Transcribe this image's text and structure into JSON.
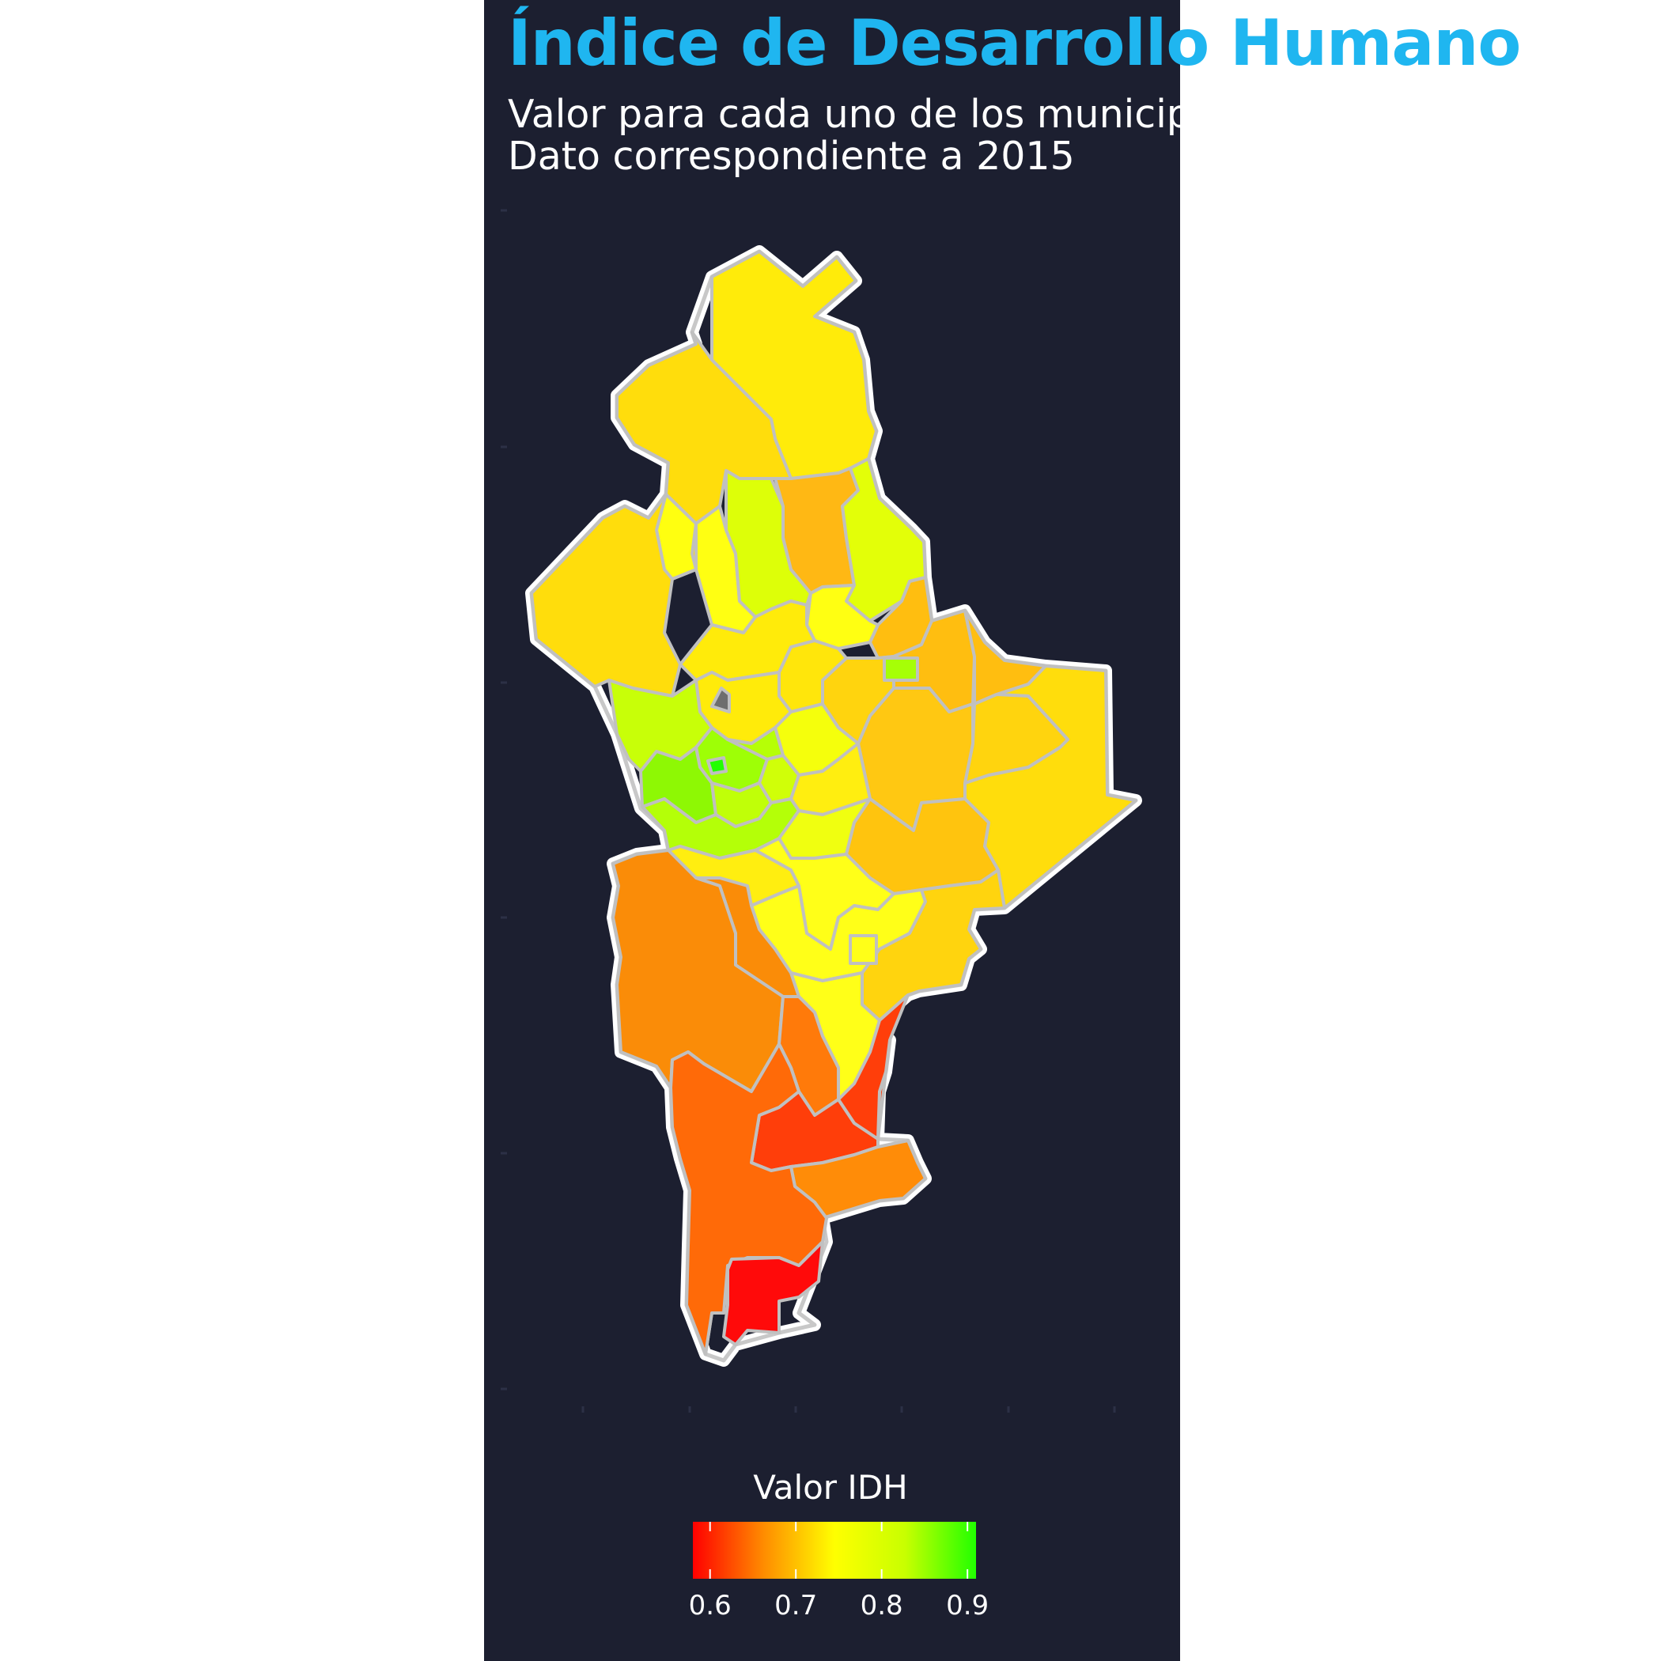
{
  "title_part1": "Índice de Desarrollo",
  "title_part2": "Humano",
  "subtitle_line1": "Valor para cada uno de los municipios",
  "subtitle_line2": "Dato correspondiente a 2015",
  "legend": {
    "title": "Valor IDH",
    "min": 0.58,
    "max": 0.91,
    "ticks": [
      "0.6",
      "0.7",
      "0.8",
      "0.9"
    ],
    "tick_values": [
      0.6,
      0.7,
      0.8,
      0.9
    ],
    "colors": [
      "#ff0000",
      "#ff8c00",
      "#ffff00",
      "#c8ff00",
      "#22ff00"
    ]
  },
  "colors": {
    "background": "#1c1f30",
    "title": "#1fb6f0",
    "municipality_border": "#c0c0c0",
    "state_outline": "#ffffff",
    "no_data": "#6e6e6e"
  }
}
